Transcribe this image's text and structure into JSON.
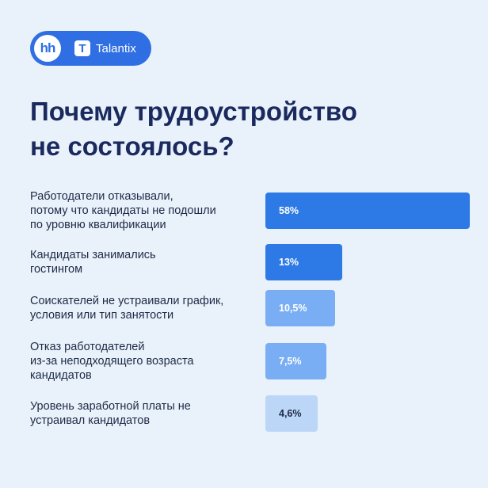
{
  "brand": {
    "hh_logo": "hh",
    "talantix_icon": "T",
    "talantix_name": "Talantix"
  },
  "title_lines": [
    "Почему трудоустройство",
    "не состоялось?"
  ],
  "chart_data": {
    "type": "bar",
    "orientation": "horizontal",
    "categories": [
      [
        "Работодатели отказывали,",
        "потому что кандидаты не подошли",
        "по уровню квалификации"
      ],
      [
        "Кандидаты занимались",
        "гостингом"
      ],
      [
        "Соискателей не устраивали график,",
        "условия или тип занятости"
      ],
      [
        "Отказ работодателей",
        "из-за неподходящего возраста",
        "кандидатов"
      ],
      [
        "Уровень заработной платы не",
        "устраивал кандидатов"
      ]
    ],
    "values": [
      58,
      13,
      10.5,
      7.5,
      4.6
    ],
    "value_labels": [
      "58%",
      "13%",
      "10,5%",
      "7,5%",
      "4,6%"
    ],
    "colors": [
      "#2d7ae6",
      "#2d7ae6",
      "#7aaef4",
      "#7aaef4",
      "#bcd6f8"
    ],
    "label_colors": [
      "#ffffff",
      "#ffffff",
      "#ffffff",
      "#ffffff",
      "#1e2a45"
    ],
    "axis": "hidden"
  }
}
